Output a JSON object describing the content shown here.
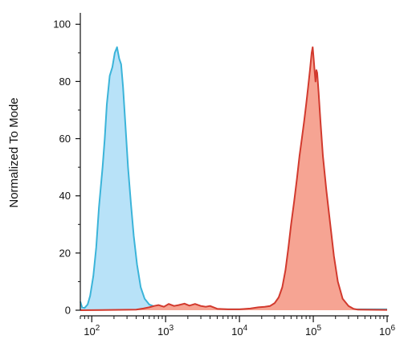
{
  "chart_data": {
    "type": "area",
    "title": "",
    "xlabel": "",
    "ylabel": "Normalized To Mode",
    "xscale": "log",
    "xlim": [
      70,
      1000000
    ],
    "ylim": [
      0,
      104
    ],
    "grid": false,
    "legend": "none",
    "x_ticks": [
      {
        "value": 100,
        "base": "10",
        "exp": "2"
      },
      {
        "value": 1000,
        "base": "10",
        "exp": "3"
      },
      {
        "value": 10000,
        "base": "10",
        "exp": "4"
      },
      {
        "value": 100000,
        "base": "10",
        "exp": "5"
      },
      {
        "value": 1000000,
        "base": "10",
        "exp": "6"
      }
    ],
    "y_ticks": [
      {
        "value": 0,
        "label": "0"
      },
      {
        "value": 20,
        "label": "20"
      },
      {
        "value": 40,
        "label": "40"
      },
      {
        "value": 60,
        "label": "60"
      },
      {
        "value": 80,
        "label": "80"
      },
      {
        "value": 100,
        "label": "100"
      }
    ],
    "series": [
      {
        "fill": "#b8e2f8",
        "stroke": "#3bb4d9",
        "points": [
          [
            70,
            3
          ],
          [
            74,
            1
          ],
          [
            80,
            0.8
          ],
          [
            88,
            2
          ],
          [
            95,
            5
          ],
          [
            105,
            12
          ],
          [
            115,
            22
          ],
          [
            125,
            36
          ],
          [
            140,
            50
          ],
          [
            150,
            60
          ],
          [
            160,
            72
          ],
          [
            175,
            82
          ],
          [
            190,
            85
          ],
          [
            205,
            90
          ],
          [
            220,
            92
          ],
          [
            235,
            88
          ],
          [
            250,
            86
          ],
          [
            265,
            78
          ],
          [
            285,
            65
          ],
          [
            310,
            50
          ],
          [
            340,
            37
          ],
          [
            370,
            26
          ],
          [
            410,
            16
          ],
          [
            460,
            8
          ],
          [
            520,
            4
          ],
          [
            600,
            2
          ],
          [
            720,
            1.2
          ],
          [
            900,
            0.8
          ],
          [
            1200,
            0.5
          ],
          [
            2000,
            0.4
          ],
          [
            5000,
            0.3
          ],
          [
            20000,
            0.3
          ],
          [
            100000,
            0.3
          ],
          [
            1000000,
            0.3
          ]
        ]
      },
      {
        "fill": "#f6a493",
        "stroke": "#d23a2e",
        "points": [
          [
            70,
            0
          ],
          [
            400,
            0.2
          ],
          [
            500,
            0.6
          ],
          [
            600,
            1
          ],
          [
            700,
            1.5
          ],
          [
            800,
            1.8
          ],
          [
            950,
            1.2
          ],
          [
            1100,
            2.2
          ],
          [
            1300,
            1.5
          ],
          [
            1500,
            1.8
          ],
          [
            1800,
            2.3
          ],
          [
            2100,
            1.6
          ],
          [
            2500,
            2.2
          ],
          [
            3000,
            1.5
          ],
          [
            3500,
            1.2
          ],
          [
            4000,
            1.5
          ],
          [
            5000,
            0.5
          ],
          [
            7000,
            0.3
          ],
          [
            10000,
            0.3
          ],
          [
            14000,
            0.6
          ],
          [
            18000,
            1
          ],
          [
            22000,
            1.2
          ],
          [
            26000,
            1.5
          ],
          [
            30000,
            2.5
          ],
          [
            34000,
            4.5
          ],
          [
            38000,
            8
          ],
          [
            42000,
            14
          ],
          [
            46000,
            22
          ],
          [
            50000,
            30
          ],
          [
            55000,
            38
          ],
          [
            60000,
            46
          ],
          [
            65000,
            54
          ],
          [
            70000,
            60
          ],
          [
            75000,
            66
          ],
          [
            80000,
            72
          ],
          [
            85000,
            78
          ],
          [
            90000,
            84
          ],
          [
            95000,
            90
          ],
          [
            98000,
            92
          ],
          [
            101000,
            88
          ],
          [
            104000,
            84
          ],
          [
            107000,
            80
          ],
          [
            110000,
            84
          ],
          [
            113000,
            83
          ],
          [
            118000,
            76
          ],
          [
            125000,
            66
          ],
          [
            135000,
            54
          ],
          [
            150000,
            42
          ],
          [
            170000,
            30
          ],
          [
            190000,
            19
          ],
          [
            215000,
            10
          ],
          [
            250000,
            4
          ],
          [
            300000,
            1.5
          ],
          [
            350000,
            0.5
          ],
          [
            400000,
            0.2
          ],
          [
            1000000,
            0.1
          ]
        ]
      }
    ]
  }
}
